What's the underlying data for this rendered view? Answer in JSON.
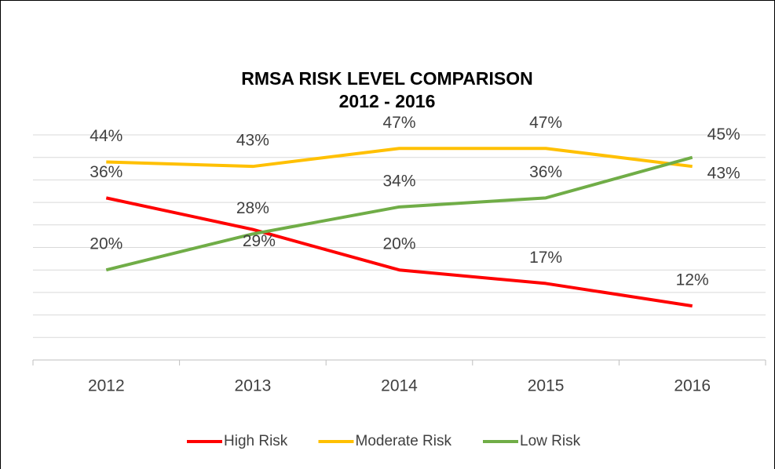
{
  "chart_data": {
    "type": "line",
    "title": "RMSA RISK LEVEL COMPARISON",
    "subtitle": "2012 - 2016",
    "categories": [
      "2012",
      "2013",
      "2014",
      "2015",
      "2016"
    ],
    "series": [
      {
        "name": "High Risk",
        "color": "#ff0000",
        "values": [
          36,
          29,
          20,
          17,
          12
        ],
        "value_labels": [
          "36%",
          "29%",
          "20%",
          "17%",
          "12%"
        ]
      },
      {
        "name": "Moderate Risk",
        "color": "#ffc000",
        "values": [
          44,
          43,
          47,
          47,
          43
        ],
        "value_labels": [
          "44%",
          "43%",
          "47%",
          "47%",
          "43%"
        ]
      },
      {
        "name": "Low Risk",
        "color": "#70ad47",
        "values": [
          20,
          28,
          34,
          36,
          45
        ],
        "value_labels": [
          "20%",
          "28%",
          "34%",
          "36%",
          "45%"
        ]
      }
    ],
    "ylim": [
      0,
      50
    ],
    "yticks": [
      0,
      5,
      10,
      15,
      20,
      25,
      30,
      35,
      40,
      45,
      50
    ],
    "grid": true,
    "legend": "bottom"
  }
}
